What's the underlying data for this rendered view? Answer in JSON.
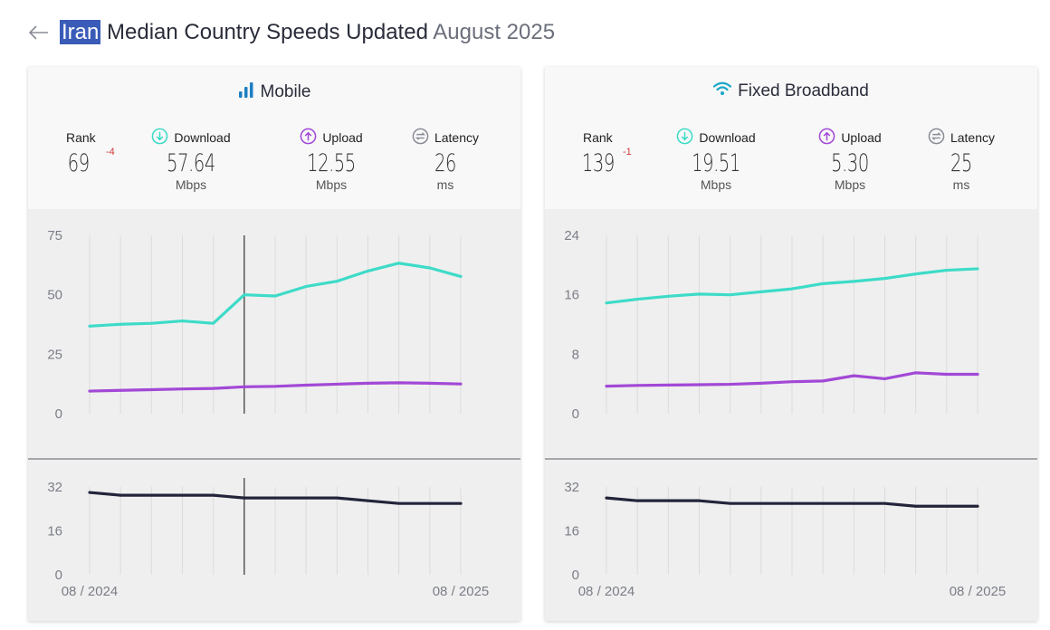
{
  "header": {
    "country": "Iran",
    "title_rest": "Median Country Speeds Updated",
    "updated": "August 2025"
  },
  "panels": [
    {
      "title": "Mobile",
      "icon": "signal-bars-icon",
      "rank_label": "Rank",
      "rank": "69",
      "rank_change": "-4",
      "download_label": "Download",
      "download": "57.64",
      "download_unit": "Mbps",
      "upload_label": "Upload",
      "upload": "12.55",
      "upload_unit": "Mbps",
      "latency_label": "Latency",
      "latency": "26",
      "latency_unit": "ms"
    },
    {
      "title": "Fixed Broadband",
      "icon": "wifi-icon",
      "rank_label": "Rank",
      "rank": "139",
      "rank_change": "-1",
      "download_label": "Download",
      "download": "19.51",
      "download_unit": "Mbps",
      "upload_label": "Upload",
      "upload": "5.30",
      "upload_unit": "Mbps",
      "latency_label": "Latency",
      "latency": "25",
      "latency_unit": "ms"
    }
  ],
  "colors": {
    "download": "#3ddbc8",
    "upload": "#a248d6",
    "latency": "#22253a",
    "rank_change": "#d13a3a"
  },
  "chart_data": [
    {
      "type": "line",
      "panel": "Mobile",
      "x": [
        "08 / 2024",
        "09 / 2024",
        "10 / 2024",
        "11 / 2024",
        "12 / 2024",
        "01 / 2025",
        "02 / 2025",
        "03 / 2025",
        "04 / 2025",
        "05 / 2025",
        "06 / 2025",
        "07 / 2025",
        "08 / 2025"
      ],
      "x_tick_labels": [
        "08 / 2024",
        "08 / 2025"
      ],
      "speed": {
        "ylim": [
          0,
          75
        ],
        "yticks": [
          "0",
          "25",
          "50",
          "75"
        ],
        "series": [
          {
            "name": "Download",
            "values": [
              36.8,
              37.6,
              38.0,
              39.0,
              38.0,
              50.0,
              49.5,
              53.5,
              55.7,
              60.0,
              63.3,
              61.3,
              57.7
            ]
          },
          {
            "name": "Upload",
            "values": [
              9.5,
              9.8,
              10.1,
              10.4,
              10.6,
              11.3,
              11.5,
              12.0,
              12.4,
              12.8,
              13.0,
              12.8,
              12.5
            ]
          }
        ]
      },
      "latency": {
        "ylim": [
          0,
          32
        ],
        "yticks": [
          "0",
          "16",
          "32"
        ],
        "series": [
          {
            "name": "Latency",
            "values": [
              30,
              29,
              29,
              29,
              29,
              28,
              28,
              28,
              28,
              27,
              26,
              26,
              26
            ]
          }
        ]
      },
      "cursor_index": 5,
      "grid": "vertical"
    },
    {
      "type": "line",
      "panel": "Fixed Broadband",
      "x": [
        "08 / 2024",
        "09 / 2024",
        "10 / 2024",
        "11 / 2024",
        "12 / 2024",
        "01 / 2025",
        "02 / 2025",
        "03 / 2025",
        "04 / 2025",
        "05 / 2025",
        "06 / 2025",
        "07 / 2025",
        "08 / 2025"
      ],
      "x_tick_labels": [
        "08 / 2024",
        "08 / 2025"
      ],
      "speed": {
        "ylim": [
          0,
          24
        ],
        "yticks": [
          "0",
          "8",
          "16",
          "24"
        ],
        "series": [
          {
            "name": "Download",
            "values": [
              14.9,
              15.4,
              15.8,
              16.1,
              16.0,
              16.4,
              16.8,
              17.5,
              17.8,
              18.2,
              18.8,
              19.3,
              19.5
            ]
          },
          {
            "name": "Upload",
            "values": [
              3.7,
              3.8,
              3.85,
              3.9,
              3.95,
              4.1,
              4.3,
              4.4,
              5.1,
              4.7,
              5.5,
              5.3,
              5.3
            ]
          }
        ]
      },
      "latency": {
        "ylim": [
          0,
          32
        ],
        "yticks": [
          "0",
          "16",
          "32"
        ],
        "series": [
          {
            "name": "Latency",
            "values": [
              28,
              27,
              27,
              27,
              26,
              26,
              26,
              26,
              26,
              26,
              25,
              25,
              25
            ]
          }
        ]
      },
      "grid": "vertical"
    }
  ]
}
